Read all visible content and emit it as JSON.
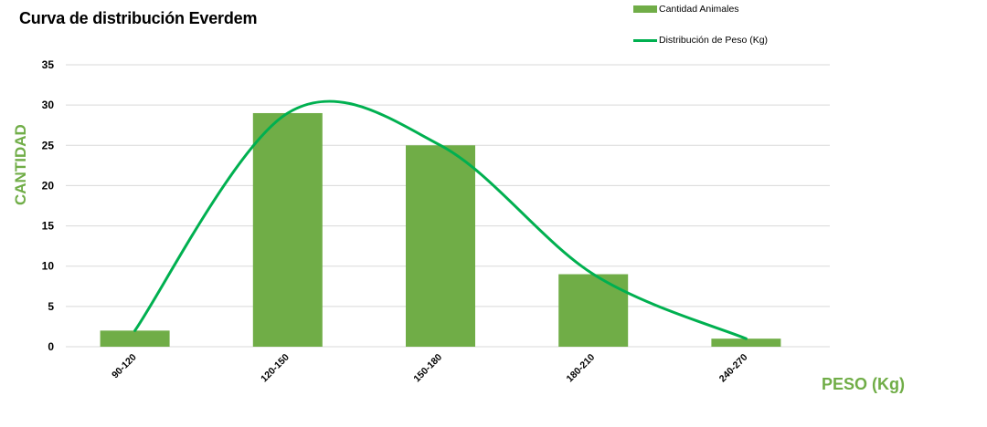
{
  "chart_data": {
    "type": "bar",
    "title": "Curva de distribución Everdem",
    "xlabel": "PESO (Kg)",
    "ylabel": "CANTIDAD",
    "categories": [
      "90-120",
      "120-150",
      "150-180",
      "180-210",
      "240-270"
    ],
    "series": [
      {
        "name": "Cantidad Animales",
        "type": "bar",
        "color": "#70AD47",
        "values": [
          2,
          29,
          25,
          9,
          1
        ]
      },
      {
        "name": "Distribución de Peso (Kg)",
        "type": "line",
        "smooth": true,
        "color": "#00B050",
        "values": [
          2,
          29,
          25,
          9,
          1
        ]
      }
    ],
    "ylim": [
      0,
      35
    ],
    "yticks": [
      0,
      5,
      10,
      15,
      20,
      25,
      30,
      35
    ],
    "grid": true,
    "legend_position": "top-right"
  },
  "legend": {
    "bar_label": "Cantidad Animales",
    "line_label": "Distribución de Peso (Kg)"
  },
  "colors": {
    "bar": "#70AD47",
    "line": "#00B050",
    "axis_title": "#70AD47",
    "grid": "#D9D9D9"
  }
}
